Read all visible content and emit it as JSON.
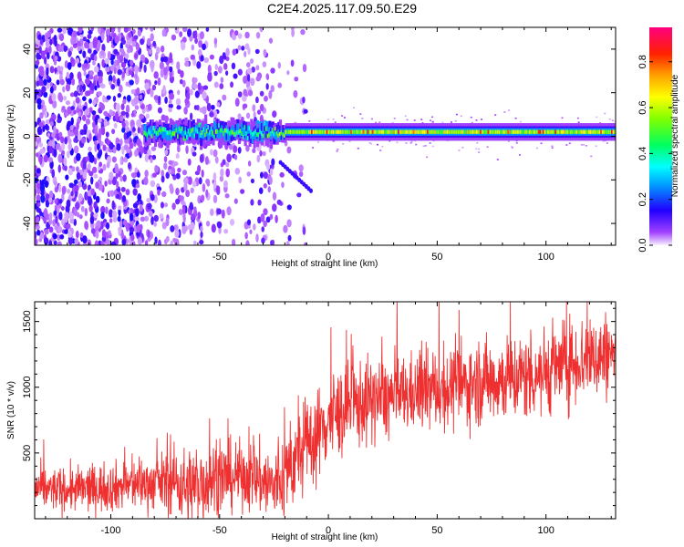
{
  "title": "C2E4.2025.117.09.50.E29",
  "chart_data": [
    {
      "type": "heatmap",
      "xlabel": "Height of straight line (km)",
      "ylabel": "Frequency (Hz)",
      "xlim": [
        -135,
        132
      ],
      "ylim": [
        -50,
        50
      ],
      "xticks": [
        -100,
        -50,
        0,
        50,
        100
      ],
      "yticks": [
        -40,
        -20,
        0,
        20,
        40
      ],
      "colorbar": {
        "label": "Normalized spectral amplitude",
        "range": [
          0,
          0.95
        ],
        "ticks": [
          0.0,
          0.2,
          0.4,
          0.6,
          0.8
        ]
      },
      "features": {
        "noise_region_x": [
          -135,
          -25
        ],
        "band_center_hz": 2,
        "band_start_x": -85,
        "peak_band_x": [
          -10,
          132
        ],
        "diagonal_streak": {
          "x": [
            -22,
            -8
          ],
          "y": [
            -12,
            -25
          ]
        }
      }
    },
    {
      "type": "line",
      "xlabel": "Height of straight line (km)",
      "ylabel": "SNR (10 * v/v)",
      "xlim": [
        -135,
        132
      ],
      "ylim": [
        0,
        1650
      ],
      "xticks": [
        -100,
        -50,
        0,
        50,
        100
      ],
      "yticks": [
        500,
        1000,
        1500
      ],
      "series": [
        {
          "color": "#ef3030",
          "trend": [
            [
              -135,
              230
            ],
            [
              -120,
              220
            ],
            [
              -100,
              240
            ],
            [
              -90,
              260
            ],
            [
              -80,
              270
            ],
            [
              -70,
              290
            ],
            [
              -65,
              230
            ],
            [
              -55,
              300
            ],
            [
              -45,
              320
            ],
            [
              -38,
              330
            ],
            [
              -30,
              290
            ],
            [
              -25,
              240
            ],
            [
              -20,
              330
            ],
            [
              -15,
              450
            ],
            [
              -10,
              560
            ],
            [
              -5,
              640
            ],
            [
              0,
              760
            ],
            [
              10,
              850
            ],
            [
              20,
              900
            ],
            [
              30,
              920
            ],
            [
              40,
              960
            ],
            [
              50,
              980
            ],
            [
              60,
              1000
            ],
            [
              70,
              1050
            ],
            [
              80,
              1060
            ],
            [
              90,
              1080
            ],
            [
              100,
              1120
            ],
            [
              110,
              1180
            ],
            [
              120,
              1230
            ],
            [
              132,
              1250
            ]
          ],
          "noise_amplitude": [
            [
              -135,
              140
            ],
            [
              -80,
              180
            ],
            [
              -60,
              300
            ],
            [
              -40,
              220
            ],
            [
              -20,
              300
            ],
            [
              0,
              320
            ],
            [
              40,
              260
            ],
            [
              80,
              300
            ],
            [
              132,
              300
            ]
          ]
        }
      ]
    }
  ]
}
